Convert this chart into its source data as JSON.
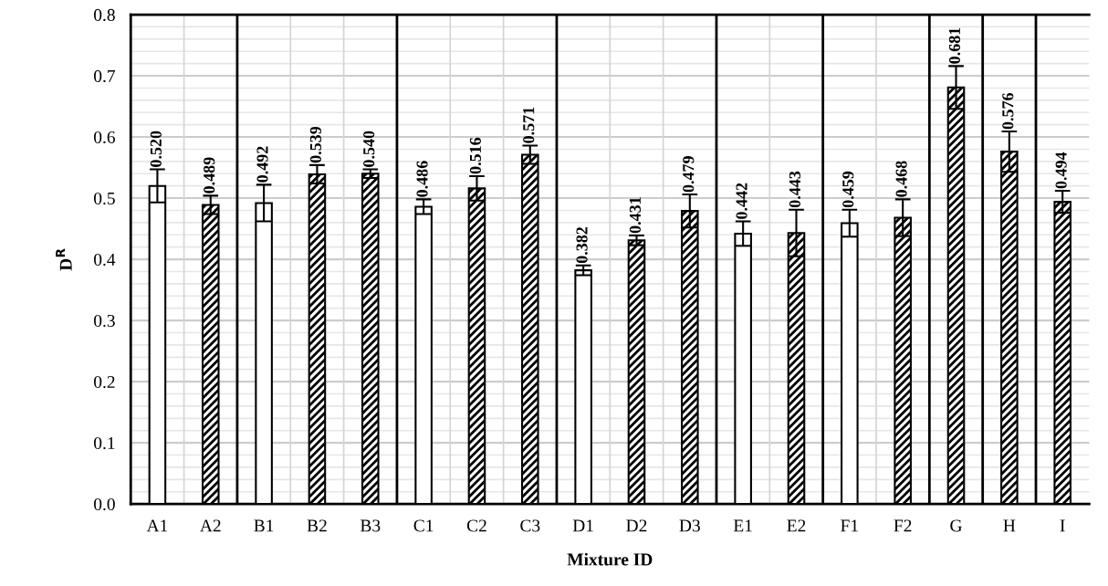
{
  "chart_data": {
    "type": "bar",
    "xlabel": "Mixture ID",
    "ylabel": "D$^{R}$",
    "categories": [
      "A1",
      "A2",
      "B1",
      "B2",
      "B3",
      "C1",
      "C2",
      "C3",
      "D1",
      "D2",
      "D3",
      "E1",
      "E2",
      "F1",
      "F2",
      "G",
      "H",
      "I"
    ],
    "values": [
      0.52,
      0.489,
      0.492,
      0.539,
      0.54,
      0.486,
      0.516,
      0.571,
      0.382,
      0.431,
      0.479,
      0.442,
      0.443,
      0.459,
      0.468,
      0.681,
      0.576,
      0.494
    ],
    "value_labels": [
      "0.520",
      "0.489",
      "0.492",
      "0.539",
      "0.540",
      "0.486",
      "0.516",
      "0.571",
      "0.382",
      "0.431",
      "0.479",
      "0.442",
      "0.443",
      "0.459",
      "0.468",
      "0.681",
      "0.576",
      "0.494"
    ],
    "errors": [
      0.027,
      0.015,
      0.03,
      0.015,
      0.007,
      0.012,
      0.02,
      0.015,
      0.008,
      0.008,
      0.027,
      0.02,
      0.038,
      0.022,
      0.03,
      0.035,
      0.033,
      0.018
    ],
    "colors": [
      "#ffffff",
      "#000000",
      "#ffffff",
      "#000000",
      "#000000",
      "#ffffff",
      "#000000",
      "#000000",
      "#ffffff",
      "#000000",
      "#000000",
      "#ffffff",
      "#000000",
      "#ffffff",
      "#000000",
      "#000000",
      "#000000",
      "#000000"
    ],
    "ylim": [
      0,
      0.8
    ],
    "yticks": [
      {
        "value": 0,
        "label": "0.0"
      },
      0.1,
      0.2,
      0.3,
      0.4,
      0.5,
      0.6,
      0.7,
      0.8
    ],
    "grid": true
  }
}
